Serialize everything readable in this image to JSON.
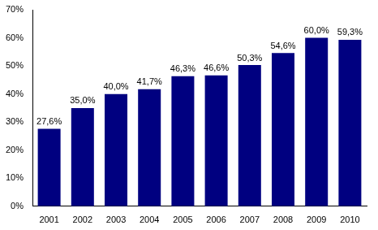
{
  "chart_data": {
    "type": "bar",
    "categories": [
      "2001",
      "2002",
      "2003",
      "2004",
      "2005",
      "2006",
      "2007",
      "2008",
      "2009",
      "2010"
    ],
    "values": [
      27.6,
      35.0,
      40.0,
      41.7,
      46.3,
      46.6,
      50.3,
      54.6,
      60.0,
      59.3
    ],
    "value_labels": [
      "27,6%",
      "35,0%",
      "40,0%",
      "41,7%",
      "46,3%",
      "46,6%",
      "50,3%",
      "54,6%",
      "60,0%",
      "59,3%"
    ],
    "data_labels": true,
    "color": "#000080",
    "ylim": [
      0,
      70
    ],
    "yticks": [
      {
        "value": 0,
        "label": "0%"
      },
      {
        "value": 10,
        "label": "10%"
      },
      {
        "value": 20,
        "label": "20%"
      },
      {
        "value": 30,
        "label": "30%"
      },
      {
        "value": 40,
        "label": "40%"
      },
      {
        "value": 50,
        "label": "50%"
      },
      {
        "value": 60,
        "label": "60%"
      },
      {
        "value": 70,
        "label": "70%"
      }
    ],
    "grid": false
  }
}
